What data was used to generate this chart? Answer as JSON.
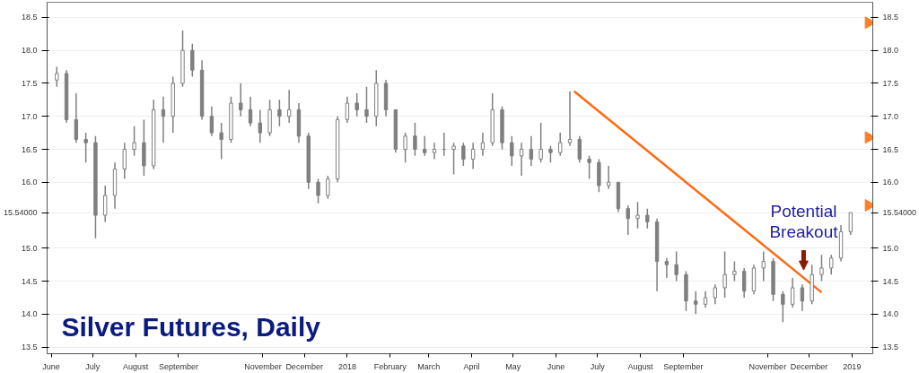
{
  "chart_data": {
    "type": "candlestick",
    "title": "Silver Futures, Daily",
    "color": "#7f7f7f",
    "x": [
      "2017-06-05",
      "2017-06-12",
      "2017-06-19",
      "2017-06-26",
      "2017-07-03",
      "2017-07-10",
      "2017-07-17",
      "2017-07-24",
      "2017-07-31",
      "2017-08-07",
      "2017-08-14",
      "2017-08-21",
      "2017-08-28",
      "2017-09-04",
      "2017-09-11",
      "2017-09-18",
      "2017-09-25",
      "2017-10-02",
      "2017-10-09",
      "2017-10-16",
      "2017-10-23",
      "2017-10-30",
      "2017-11-06",
      "2017-11-13",
      "2017-11-20",
      "2017-11-27",
      "2017-12-04",
      "2017-12-11",
      "2017-12-18",
      "2017-12-25",
      "2018-01-01",
      "2018-01-08",
      "2018-01-15",
      "2018-01-22",
      "2018-01-29",
      "2018-02-05",
      "2018-02-12",
      "2018-02-19",
      "2018-02-26",
      "2018-03-05",
      "2018-03-12",
      "2018-03-19",
      "2018-03-26",
      "2018-04-02",
      "2018-04-09",
      "2018-04-16",
      "2018-04-23",
      "2018-04-30",
      "2018-05-07",
      "2018-05-14",
      "2018-05-21",
      "2018-05-28",
      "2018-06-04",
      "2018-06-11",
      "2018-06-18",
      "2018-06-25",
      "2018-07-02",
      "2018-07-09",
      "2018-07-16",
      "2018-07-23",
      "2018-07-30",
      "2018-08-06",
      "2018-08-13",
      "2018-08-20",
      "2018-08-27",
      "2018-09-03",
      "2018-09-10",
      "2018-09-17",
      "2018-09-24",
      "2018-10-01",
      "2018-10-08",
      "2018-10-15",
      "2018-10-22",
      "2018-10-29",
      "2018-11-05",
      "2018-11-12",
      "2018-11-19",
      "2018-11-26",
      "2018-12-03",
      "2018-12-10",
      "2018-12-17",
      "2018-12-24",
      "2018-12-31"
    ],
    "ohlc": [
      [
        17.55,
        17.75,
        17.45,
        17.65
      ],
      [
        17.65,
        17.7,
        16.9,
        16.95
      ],
      [
        16.95,
        17.35,
        16.6,
        16.65
      ],
      [
        16.65,
        16.75,
        16.3,
        16.6
      ],
      [
        16.6,
        16.7,
        15.15,
        15.5
      ],
      [
        15.5,
        15.95,
        15.4,
        15.8
      ],
      [
        15.8,
        16.3,
        15.6,
        16.2
      ],
      [
        16.2,
        16.6,
        16.05,
        16.5
      ],
      [
        16.5,
        16.85,
        16.4,
        16.6
      ],
      [
        16.6,
        16.95,
        16.1,
        16.25
      ],
      [
        16.25,
        17.25,
        16.2,
        17.1
      ],
      [
        17.1,
        17.3,
        16.6,
        17.0
      ],
      [
        17.0,
        17.6,
        16.75,
        17.5
      ],
      [
        17.5,
        18.3,
        17.45,
        18.0
      ],
      [
        18.0,
        18.1,
        17.6,
        17.7
      ],
      [
        17.7,
        17.85,
        16.95,
        17.0
      ],
      [
        17.0,
        17.15,
        16.7,
        16.75
      ],
      [
        16.75,
        16.9,
        16.35,
        16.65
      ],
      [
        16.65,
        17.3,
        16.6,
        17.2
      ],
      [
        17.2,
        17.5,
        17.0,
        17.1
      ],
      [
        17.1,
        17.3,
        16.85,
        16.9
      ],
      [
        16.9,
        17.1,
        16.6,
        16.75
      ],
      [
        16.75,
        17.25,
        16.7,
        17.1
      ],
      [
        17.1,
        17.25,
        16.85,
        17.0
      ],
      [
        17.0,
        17.4,
        16.9,
        17.1
      ],
      [
        17.1,
        17.2,
        16.6,
        16.7
      ],
      [
        16.7,
        16.75,
        15.9,
        16.0
      ],
      [
        16.0,
        16.05,
        15.68,
        15.8
      ],
      [
        15.8,
        16.1,
        15.75,
        16.05
      ],
      [
        16.05,
        17.0,
        16.0,
        16.95
      ],
      [
        16.95,
        17.3,
        16.9,
        17.2
      ],
      [
        17.2,
        17.35,
        17.0,
        17.1
      ],
      [
        17.1,
        17.45,
        16.9,
        17.0
      ],
      [
        17.0,
        17.7,
        16.85,
        17.5
      ],
      [
        17.5,
        17.55,
        17.0,
        17.1
      ],
      [
        17.1,
        17.1,
        16.45,
        16.5
      ],
      [
        16.5,
        16.75,
        16.3,
        16.7
      ],
      [
        16.7,
        16.9,
        16.4,
        16.5
      ],
      [
        16.5,
        16.7,
        16.4,
        16.45
      ],
      [
        16.45,
        16.6,
        16.35,
        16.5
      ],
      [
        16.5,
        16.75,
        16.4,
        16.5
      ],
      [
        16.5,
        16.6,
        16.12,
        16.55
      ],
      [
        16.55,
        16.6,
        16.25,
        16.35
      ],
      [
        16.35,
        16.6,
        16.2,
        16.5
      ],
      [
        16.5,
        16.75,
        16.4,
        16.6
      ],
      [
        16.6,
        17.35,
        16.55,
        17.1
      ],
      [
        17.1,
        17.15,
        16.5,
        16.6
      ],
      [
        16.6,
        16.7,
        16.25,
        16.4
      ],
      [
        16.4,
        16.6,
        16.1,
        16.5
      ],
      [
        16.5,
        16.7,
        16.25,
        16.35
      ],
      [
        16.35,
        16.9,
        16.3,
        16.5
      ],
      [
        16.5,
        16.55,
        16.3,
        16.45
      ],
      [
        16.45,
        16.75,
        16.4,
        16.6
      ],
      [
        16.6,
        17.38,
        16.55,
        16.65
      ],
      [
        16.65,
        16.7,
        16.3,
        16.35
      ],
      [
        16.35,
        16.4,
        16.05,
        16.3
      ],
      [
        16.3,
        16.35,
        15.85,
        15.95
      ],
      [
        15.95,
        16.25,
        15.9,
        16.0
      ],
      [
        16.0,
        16.0,
        15.55,
        15.6
      ],
      [
        15.6,
        15.65,
        15.2,
        15.45
      ],
      [
        15.45,
        15.7,
        15.3,
        15.5
      ],
      [
        15.5,
        15.6,
        15.3,
        15.4
      ],
      [
        15.4,
        15.45,
        14.35,
        14.8
      ],
      [
        14.8,
        14.85,
        14.55,
        14.75
      ],
      [
        14.75,
        14.95,
        14.5,
        14.6
      ],
      [
        14.6,
        14.65,
        14.05,
        14.2
      ],
      [
        14.2,
        14.35,
        14.0,
        14.15
      ],
      [
        14.15,
        14.35,
        14.1,
        14.25
      ],
      [
        14.25,
        14.45,
        14.15,
        14.4
      ],
      [
        14.4,
        14.95,
        14.25,
        14.6
      ],
      [
        14.6,
        14.8,
        14.5,
        14.65
      ],
      [
        14.65,
        14.7,
        14.25,
        14.35
      ],
      [
        14.35,
        14.75,
        14.3,
        14.7
      ],
      [
        14.7,
        14.95,
        14.5,
        14.8
      ],
      [
        14.8,
        14.85,
        14.2,
        14.3
      ],
      [
        14.3,
        14.35,
        13.88,
        14.15
      ],
      [
        14.15,
        14.55,
        14.1,
        14.4
      ],
      [
        14.4,
        14.45,
        14.05,
        14.2
      ],
      [
        14.2,
        14.75,
        14.15,
        14.6
      ],
      [
        14.6,
        14.9,
        14.5,
        14.7
      ],
      [
        14.7,
        14.9,
        14.6,
        14.85
      ],
      [
        14.85,
        15.35,
        14.8,
        15.25
      ],
      [
        15.25,
        15.54,
        15.2,
        15.54
      ]
    ],
    "series": [
      {
        "type": "line",
        "x": [
          "2018-06-14",
          "2018-12-10"
        ],
        "values": [
          17.38,
          14.33
        ],
        "color": "#ff6a13"
      },
      {
        "type": "scatter",
        "marker": "triangle",
        "x": [
          "2019-01-13",
          "2019-01-13",
          "2019-01-13"
        ],
        "values": [
          18.42,
          16.68,
          15.65
        ],
        "color": "#ff7f27"
      }
    ],
    "annotations": [
      {
        "text": "Potential\nBreakout",
        "x": "2018-11-27",
        "y": 14.55
      }
    ],
    "xlim": [
      "2017-05-29",
      "2019-01-16"
    ],
    "xticks": [
      {
        "value": "2017-06-01",
        "label": "June"
      },
      {
        "value": "2017-07-01",
        "label": "July"
      },
      {
        "value": "2017-08-01",
        "label": "August"
      },
      {
        "value": "2017-09-01",
        "label": "September"
      },
      {
        "value": "2017-11-01",
        "label": "November"
      },
      {
        "value": "2017-12-01",
        "label": "December"
      },
      {
        "value": "2018-01-01",
        "label": "2018"
      },
      {
        "value": "2018-02-01",
        "label": "February"
      },
      {
        "value": "2018-03-01",
        "label": "March"
      },
      {
        "value": "2018-04-01",
        "label": "April"
      },
      {
        "value": "2018-05-01",
        "label": "May"
      },
      {
        "value": "2018-06-01",
        "label": "June"
      },
      {
        "value": "2018-07-01",
        "label": "July"
      },
      {
        "value": "2018-08-01",
        "label": "August"
      },
      {
        "value": "2018-09-01",
        "label": "September"
      },
      {
        "value": "2018-11-01",
        "label": "November"
      },
      {
        "value": "2018-12-01",
        "label": "December"
      },
      {
        "value": "2019-01-01",
        "label": "2019"
      }
    ],
    "ylim": [
      13.4,
      18.73
    ],
    "yticks": [
      {
        "value": 13.5,
        "label": "13.5"
      },
      {
        "value": 14.0,
        "label": "14.0"
      },
      {
        "value": 14.5,
        "label": "14.5"
      },
      {
        "value": 15.0,
        "label": "15.0"
      },
      {
        "value": 15.54,
        "label": "15.54000"
      },
      {
        "value": 16.0,
        "label": "16.0"
      },
      {
        "value": 16.5,
        "label": "16.5"
      },
      {
        "value": 17.0,
        "label": "17.0"
      },
      {
        "value": 17.5,
        "label": "17.5"
      },
      {
        "value": 18.0,
        "label": "18.0"
      },
      {
        "value": 18.5,
        "label": "18.5"
      }
    ],
    "y2lim": [
      13.4,
      18.73
    ],
    "y2ticks": [
      {
        "value": 13.5,
        "label": "13.5"
      },
      {
        "value": 14.0,
        "label": "14.0"
      },
      {
        "value": 14.5,
        "label": "14.5"
      },
      {
        "value": 15.0,
        "label": "15.0"
      },
      {
        "value": 15.54,
        "label": "15.54000"
      },
      {
        "value": 16.0,
        "label": "16.0"
      },
      {
        "value": 16.5,
        "label": "16.5"
      },
      {
        "value": 17.0,
        "label": "17.0"
      },
      {
        "value": 17.5,
        "label": "17.5"
      },
      {
        "value": 18.0,
        "label": "18.0"
      },
      {
        "value": 18.5,
        "label": "18.5"
      }
    ],
    "grid": "y"
  }
}
